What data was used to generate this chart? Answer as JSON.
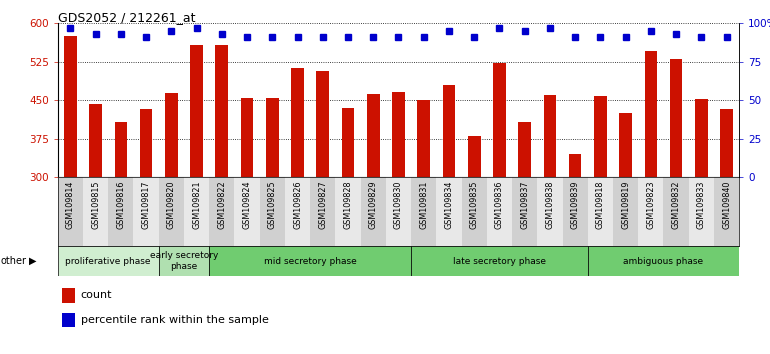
{
  "title": "GDS2052 / 212261_at",
  "samples": [
    "GSM109814",
    "GSM109815",
    "GSM109816",
    "GSM109817",
    "GSM109820",
    "GSM109821",
    "GSM109822",
    "GSM109824",
    "GSM109825",
    "GSM109826",
    "GSM109827",
    "GSM109828",
    "GSM109829",
    "GSM109830",
    "GSM109831",
    "GSM109834",
    "GSM109835",
    "GSM109836",
    "GSM109837",
    "GSM109838",
    "GSM109839",
    "GSM109818",
    "GSM109819",
    "GSM109823",
    "GSM109832",
    "GSM109833",
    "GSM109840"
  ],
  "counts": [
    575,
    443,
    408,
    433,
    463,
    557,
    557,
    454,
    453,
    512,
    507,
    435,
    462,
    465,
    450,
    480,
    380,
    523,
    408,
    460,
    345,
    458,
    424,
    545,
    530,
    452,
    432
  ],
  "percentile_ranks": [
    97,
    93,
    93,
    91,
    95,
    97,
    93,
    91,
    91,
    91,
    91,
    91,
    91,
    91,
    91,
    95,
    91,
    97,
    95,
    97,
    91,
    91,
    91,
    95,
    93,
    91,
    91
  ],
  "bar_color": "#cc1100",
  "dot_color": "#0000cc",
  "plot_bg": "#ffffff",
  "ylim_left": [
    300,
    600
  ],
  "ylim_right": [
    0,
    100
  ],
  "yticks_left": [
    300,
    375,
    450,
    525,
    600
  ],
  "yticks_right": [
    0,
    25,
    50,
    75,
    100
  ],
  "phases": [
    {
      "label": "proliferative phase",
      "start": 0,
      "end": 4,
      "color": "#d0eed0"
    },
    {
      "label": "early secretory\nphase",
      "start": 4,
      "end": 6,
      "color": "#b0e0b0"
    },
    {
      "label": "mid secretory phase",
      "start": 6,
      "end": 14,
      "color": "#70cc70"
    },
    {
      "label": "late secretory phase",
      "start": 14,
      "end": 21,
      "color": "#70cc70"
    },
    {
      "label": "ambiguous phase",
      "start": 21,
      "end": 27,
      "color": "#70cc70"
    }
  ],
  "other_label": "other",
  "legend_count_label": "count",
  "legend_pct_label": "percentile rank within the sample"
}
